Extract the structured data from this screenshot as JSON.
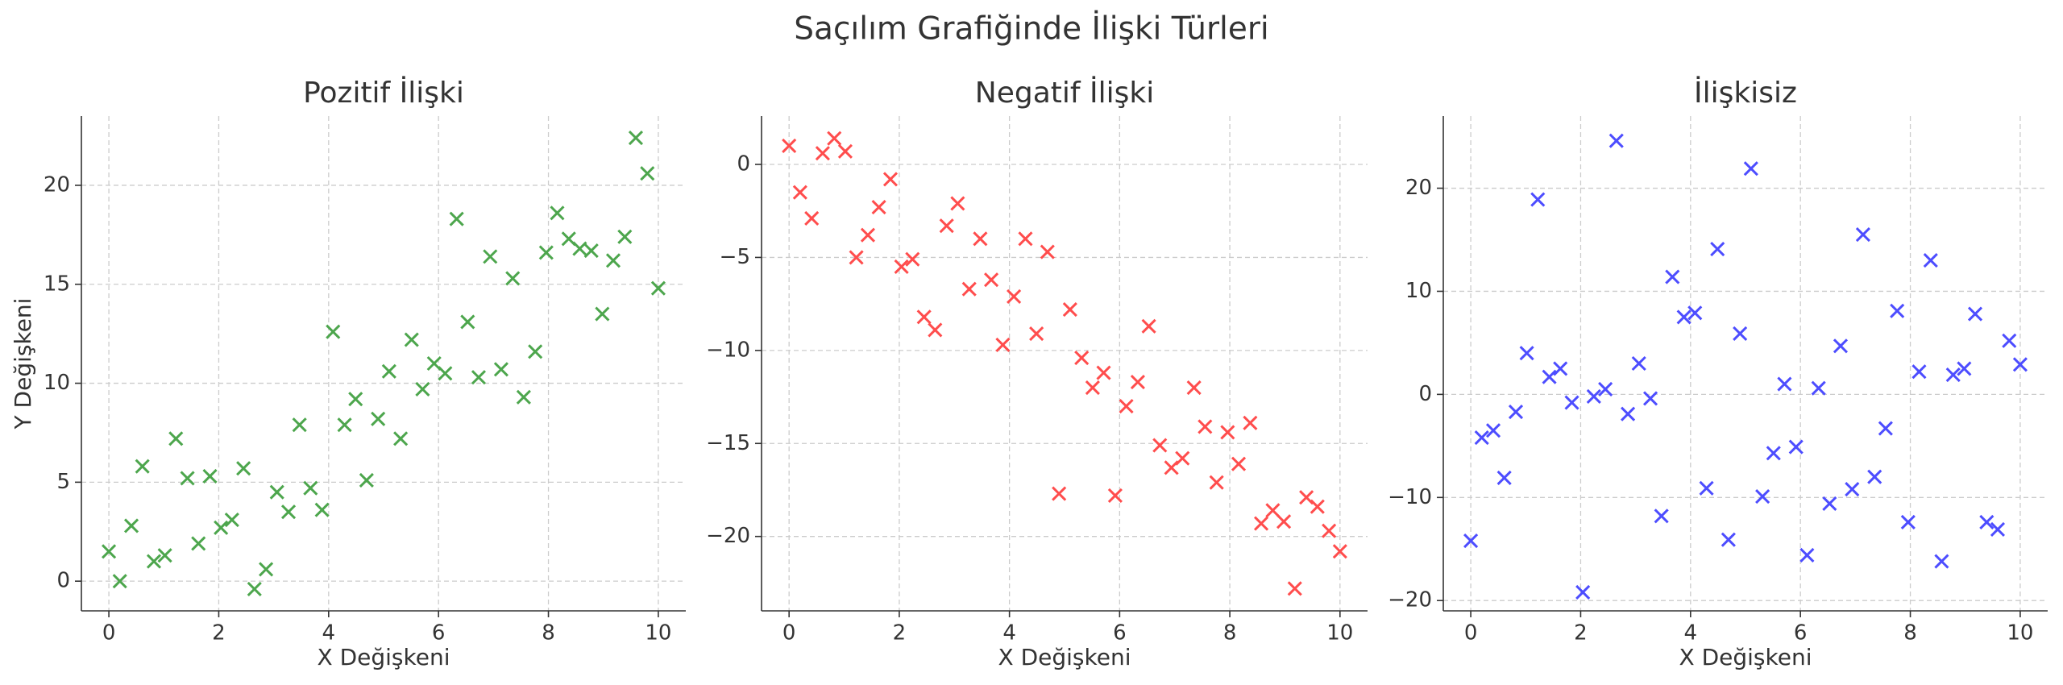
{
  "title": "Saçılım Grafiğinde İlişki Türleri",
  "chart_data": [
    {
      "type": "scatter",
      "title": "Pozitif İlişki",
      "xlabel": "X Değişkeni",
      "ylabel": "Y Değişkeni",
      "series": [
        {
          "color": "#4da64d",
          "marker": "x",
          "x": [
            0,
            0.2,
            0.41,
            0.61,
            0.82,
            1.02,
            1.22,
            1.43,
            1.63,
            1.84,
            2.04,
            2.24,
            2.45,
            2.65,
            2.86,
            3.06,
            3.27,
            3.47,
            3.67,
            3.88,
            4.08,
            4.29,
            4.49,
            4.69,
            4.9,
            5.1,
            5.31,
            5.51,
            5.71,
            5.92,
            6.12,
            6.33,
            6.53,
            6.73,
            6.94,
            7.14,
            7.35,
            7.55,
            7.76,
            7.96,
            8.16,
            8.37,
            8.57,
            8.78,
            8.98,
            9.18,
            9.39,
            9.59,
            9.8,
            10
          ],
          "values": [
            1.5,
            0.0,
            2.8,
            5.8,
            1.0,
            1.3,
            7.2,
            5.2,
            1.9,
            5.3,
            2.7,
            3.1,
            5.7,
            -0.4,
            0.6,
            4.5,
            3.5,
            7.9,
            4.7,
            3.6,
            12.6,
            7.9,
            9.2,
            5.1,
            8.2,
            10.6,
            7.2,
            12.2,
            9.7,
            11.0,
            10.5,
            18.3,
            13.1,
            10.3,
            16.4,
            10.7,
            15.3,
            9.3,
            11.6,
            16.6,
            18.6,
            17.3,
            16.8,
            16.7,
            13.5,
            16.2,
            17.4,
            22.4,
            20.6,
            14.8
          ]
        }
      ],
      "xlim": [
        -0.5,
        10.5
      ],
      "xticks": [
        0,
        2,
        4,
        6,
        8,
        10
      ],
      "ylim": [
        -1.5,
        23.5
      ],
      "yticks": [
        0,
        5,
        10,
        15,
        20
      ],
      "grid": true
    },
    {
      "type": "scatter",
      "title": "Negatif İlişki",
      "xlabel": "X Değişkeni",
      "series": [
        {
          "color": "#ff4d4d",
          "marker": "x",
          "x": [
            0,
            0.2,
            0.41,
            0.61,
            0.82,
            1.02,
            1.22,
            1.43,
            1.63,
            1.84,
            2.04,
            2.24,
            2.45,
            2.65,
            2.86,
            3.06,
            3.27,
            3.47,
            3.67,
            3.88,
            4.08,
            4.29,
            4.49,
            4.69,
            4.9,
            5.1,
            5.31,
            5.51,
            5.71,
            5.92,
            6.12,
            6.33,
            6.53,
            6.73,
            6.94,
            7.14,
            7.35,
            7.55,
            7.76,
            7.96,
            8.16,
            8.37,
            8.57,
            8.78,
            8.98,
            9.18,
            9.39,
            9.59,
            9.8,
            10
          ],
          "values": [
            1.0,
            -1.5,
            -2.9,
            0.6,
            1.4,
            0.7,
            -5.0,
            -3.8,
            -2.3,
            -0.8,
            -5.5,
            -5.1,
            -8.2,
            -8.9,
            -3.3,
            -2.1,
            -6.7,
            -4.0,
            -6.2,
            -9.7,
            -7.1,
            -4.0,
            -9.1,
            -4.7,
            -17.7,
            -7.8,
            -10.4,
            -12.0,
            -11.2,
            -17.8,
            -13.0,
            -11.7,
            -8.7,
            -15.1,
            -16.3,
            -15.8,
            -12.0,
            -14.1,
            -17.1,
            -14.4,
            -16.1,
            -13.9,
            -19.3,
            -18.6,
            -19.2,
            -22.8,
            -17.9,
            -18.4,
            -19.7,
            -20.8
          ]
        }
      ],
      "xlim": [
        -0.5,
        10.5
      ],
      "xticks": [
        0,
        2,
        4,
        6,
        8,
        10
      ],
      "ylim": [
        -24,
        2.6
      ],
      "yticks": [
        0,
        {
          "value": -5,
          "label": "−5"
        },
        {
          "value": -10,
          "label": "−10"
        },
        {
          "value": -15,
          "label": "−15"
        },
        {
          "value": -20,
          "label": "−20"
        }
      ],
      "grid": true
    },
    {
      "type": "scatter",
      "title": "İlişkisiz",
      "xlabel": "X Değişkeni",
      "series": [
        {
          "color": "#4d4dff",
          "marker": "x",
          "x": [
            0,
            0.2,
            0.41,
            0.61,
            0.82,
            1.02,
            1.22,
            1.43,
            1.63,
            1.84,
            2.04,
            2.24,
            2.45,
            2.65,
            2.86,
            3.06,
            3.27,
            3.47,
            3.67,
            3.88,
            4.08,
            4.29,
            4.49,
            4.69,
            4.9,
            5.1,
            5.31,
            5.51,
            5.71,
            5.92,
            6.12,
            6.33,
            6.53,
            6.73,
            6.94,
            7.14,
            7.35,
            7.55,
            7.76,
            7.96,
            8.16,
            8.37,
            8.57,
            8.78,
            8.98,
            9.18,
            9.39,
            9.59,
            9.8,
            10
          ],
          "values": [
            -14.2,
            -4.2,
            -3.5,
            -8.1,
            -1.7,
            4.0,
            18.9,
            1.7,
            2.5,
            -0.8,
            -19.2,
            -0.2,
            0.5,
            24.6,
            -1.9,
            3.0,
            -0.4,
            -11.8,
            11.4,
            7.5,
            7.9,
            -9.1,
            14.1,
            -14.1,
            5.9,
            21.9,
            -9.9,
            -5.7,
            1.0,
            -5.1,
            -15.6,
            0.6,
            -10.6,
            4.7,
            -9.2,
            15.5,
            -8.0,
            -3.3,
            8.1,
            -12.4,
            2.2,
            13.0,
            -16.2,
            1.9,
            2.5,
            7.8,
            -12.4,
            -13.1,
            5.2,
            2.9
          ]
        }
      ],
      "xlim": [
        -0.5,
        10.5
      ],
      "xticks": [
        0,
        2,
        4,
        6,
        8,
        10
      ],
      "ylim": [
        -21,
        27
      ],
      "yticks": [
        {
          "value": -20,
          "label": "−20"
        },
        {
          "value": -10,
          "label": "−10"
        },
        0,
        10,
        20
      ],
      "grid": true
    }
  ]
}
